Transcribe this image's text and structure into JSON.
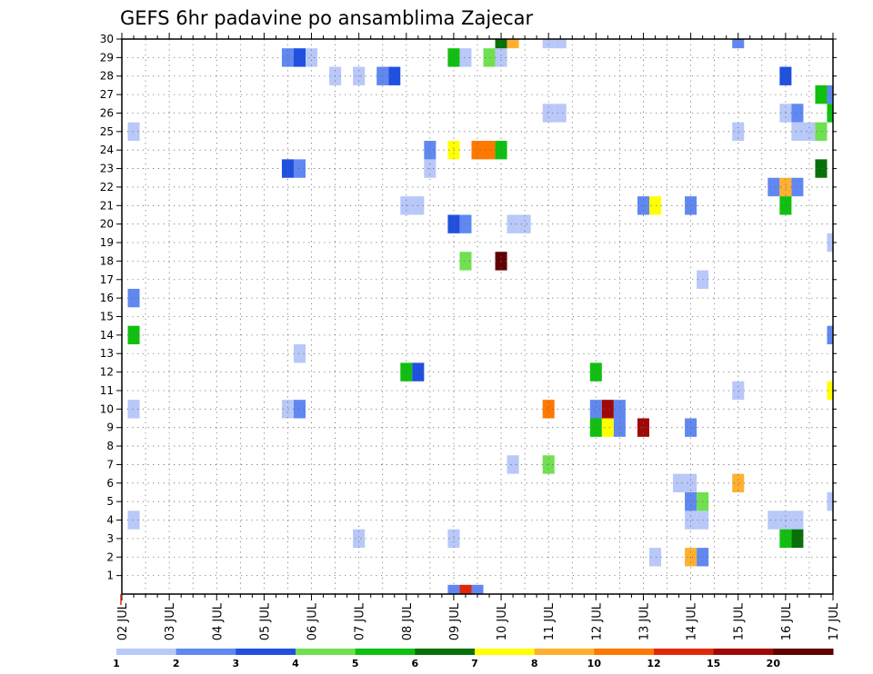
{
  "chart_data": {
    "type": "heatmap",
    "title": "GEFS 6hr padavine po ansamblima Zajecar",
    "xlabel": "",
    "ylabel": "",
    "x_tick_labels": [
      "02 JUL",
      "03 JUL",
      "04 JUL",
      "05 JUL",
      "06 JUL",
      "07 JUL",
      "08 JUL",
      "09 JUL",
      "10 JUL",
      "11 JUL",
      "12 JUL",
      "13 JUL",
      "14 JUL",
      "15 JUL",
      "16 JUL",
      "17 JUL"
    ],
    "xlim_days": [
      2,
      17
    ],
    "y_members": [
      1,
      2,
      3,
      4,
      5,
      6,
      7,
      8,
      9,
      10,
      11,
      12,
      13,
      14,
      15,
      16,
      17,
      18,
      19,
      20,
      21,
      22,
      23,
      24,
      25,
      26,
      27,
      28,
      29,
      30
    ],
    "grid": true,
    "legend": {
      "position": "bottom",
      "levels": [
        1,
        2,
        3,
        4,
        5,
        6,
        7,
        8,
        10,
        12,
        15,
        20
      ],
      "colors": [
        "#b8c8f8",
        "#6088f0",
        "#2050e0",
        "#70e050",
        "#10c010",
        "#087008",
        "#ffff00",
        "#ffb030",
        "#ff7800",
        "#e02808",
        "#a00808",
        "#600000"
      ]
    },
    "cells": [
      {
        "day": 9.0,
        "member": 0,
        "c": "#6088f0"
      },
      {
        "day": 9.25,
        "member": 0,
        "c": "#e02808"
      },
      {
        "day": 9.5,
        "member": 0,
        "c": "#6088f0"
      },
      {
        "day": 2.25,
        "member": 4,
        "c": "#b8c8f8"
      },
      {
        "day": 2.25,
        "member": 10,
        "c": "#b8c8f8"
      },
      {
        "day": 2.25,
        "member": 14,
        "c": "#10c010"
      },
      {
        "day": 2.25,
        "member": 16,
        "c": "#6088f0"
      },
      {
        "day": 2.25,
        "member": 25,
        "c": "#b8c8f8"
      },
      {
        "day": 5.5,
        "member": 10,
        "c": "#b8c8f8"
      },
      {
        "day": 5.75,
        "member": 10,
        "c": "#6088f0"
      },
      {
        "day": 5.75,
        "member": 13,
        "c": "#b8c8f8"
      },
      {
        "day": 5.5,
        "member": 23,
        "c": "#2050e0"
      },
      {
        "day": 5.75,
        "member": 23,
        "c": "#6088f0"
      },
      {
        "day": 5.5,
        "member": 29,
        "c": "#6088f0"
      },
      {
        "day": 5.75,
        "member": 29,
        "c": "#2050e0"
      },
      {
        "day": 6.0,
        "member": 29,
        "c": "#b8c8f8"
      },
      {
        "day": 6.5,
        "member": 28,
        "c": "#b8c8f8"
      },
      {
        "day": 7.0,
        "member": 28,
        "c": "#b8c8f8"
      },
      {
        "day": 7.5,
        "member": 28,
        "c": "#6088f0"
      },
      {
        "day": 7.75,
        "member": 28,
        "c": "#2050e0"
      },
      {
        "day": 7.0,
        "member": 3,
        "c": "#b8c8f8"
      },
      {
        "day": 8.0,
        "member": 12,
        "c": "#10c010"
      },
      {
        "day": 8.25,
        "member": 12,
        "c": "#2050e0"
      },
      {
        "day": 8.0,
        "member": 21,
        "c": "#b8c8f8"
      },
      {
        "day": 8.25,
        "member": 21,
        "c": "#b8c8f8"
      },
      {
        "day": 8.5,
        "member": 23,
        "c": "#b8c8f8"
      },
      {
        "day": 8.5,
        "member": 24,
        "c": "#6088f0"
      },
      {
        "day": 9.0,
        "member": 3,
        "c": "#b8c8f8"
      },
      {
        "day": 9.0,
        "member": 20,
        "c": "#2050e0"
      },
      {
        "day": 9.25,
        "member": 20,
        "c": "#6088f0"
      },
      {
        "day": 9.0,
        "member": 24,
        "c": "#ffff00"
      },
      {
        "day": 9.5,
        "member": 24,
        "c": "#ff7800"
      },
      {
        "day": 9.75,
        "member": 24,
        "c": "#ff7800"
      },
      {
        "day": 10.0,
        "member": 24,
        "c": "#10c010"
      },
      {
        "day": 9.0,
        "member": 29,
        "c": "#10c010"
      },
      {
        "day": 9.25,
        "member": 29,
        "c": "#b8c8f8"
      },
      {
        "day": 9.75,
        "member": 29,
        "c": "#70e050"
      },
      {
        "day": 10.0,
        "member": 29,
        "c": "#b8c8f8"
      },
      {
        "day": 9.25,
        "member": 18,
        "c": "#70e050"
      },
      {
        "day": 10.0,
        "member": 18,
        "c": "#600000"
      },
      {
        "day": 10.0,
        "member": 30,
        "c": "#087008"
      },
      {
        "day": 10.25,
        "member": 30,
        "c": "#ffb030"
      },
      {
        "day": 10.25,
        "member": 7,
        "c": "#b8c8f8"
      },
      {
        "day": 10.25,
        "member": 20,
        "c": "#b8c8f8"
      },
      {
        "day": 10.5,
        "member": 20,
        "c": "#b8c8f8"
      },
      {
        "day": 11.0,
        "member": 7,
        "c": "#70e050"
      },
      {
        "day": 11.0,
        "member": 10,
        "c": "#ff7800"
      },
      {
        "day": 11.0,
        "member": 26,
        "c": "#b8c8f8"
      },
      {
        "day": 11.25,
        "member": 26,
        "c": "#b8c8f8"
      },
      {
        "day": 11.0,
        "member": 30,
        "c": "#b8c8f8"
      },
      {
        "day": 11.25,
        "member": 30,
        "c": "#b8c8f8"
      },
      {
        "day": 12.0,
        "member": 9,
        "c": "#10c010"
      },
      {
        "day": 12.25,
        "member": 9,
        "c": "#ffff00"
      },
      {
        "day": 12.5,
        "member": 9,
        "c": "#6088f0"
      },
      {
        "day": 12.0,
        "member": 10,
        "c": "#6088f0"
      },
      {
        "day": 12.25,
        "member": 10,
        "c": "#a00808"
      },
      {
        "day": 12.5,
        "member": 10,
        "c": "#6088f0"
      },
      {
        "day": 12.0,
        "member": 12,
        "c": "#10c010"
      },
      {
        "day": 13.0,
        "member": 9,
        "c": "#a00808"
      },
      {
        "day": 13.25,
        "member": 2,
        "c": "#b8c8f8"
      },
      {
        "day": 13.0,
        "member": 21,
        "c": "#6088f0"
      },
      {
        "day": 13.25,
        "member": 21,
        "c": "#ffff00"
      },
      {
        "day": 13.75,
        "member": 6,
        "c": "#b8c8f8"
      },
      {
        "day": 14.0,
        "member": 6,
        "c": "#b8c8f8"
      },
      {
        "day": 14.0,
        "member": 2,
        "c": "#ffb030"
      },
      {
        "day": 14.25,
        "member": 2,
        "c": "#6088f0"
      },
      {
        "day": 14.0,
        "member": 4,
        "c": "#b8c8f8"
      },
      {
        "day": 14.25,
        "member": 4,
        "c": "#b8c8f8"
      },
      {
        "day": 14.0,
        "member": 5,
        "c": "#6088f0"
      },
      {
        "day": 14.25,
        "member": 5,
        "c": "#70e050"
      },
      {
        "day": 14.0,
        "member": 9,
        "c": "#6088f0"
      },
      {
        "day": 14.0,
        "member": 21,
        "c": "#6088f0"
      },
      {
        "day": 14.25,
        "member": 17,
        "c": "#b8c8f8"
      },
      {
        "day": 15.0,
        "member": 6,
        "c": "#ffb030"
      },
      {
        "day": 15.0,
        "member": 11,
        "c": "#b8c8f8"
      },
      {
        "day": 15.0,
        "member": 25,
        "c": "#b8c8f8"
      },
      {
        "day": 15.0,
        "member": 30,
        "c": "#6088f0"
      },
      {
        "day": 15.75,
        "member": 4,
        "c": "#b8c8f8"
      },
      {
        "day": 16.0,
        "member": 4,
        "c": "#b8c8f8"
      },
      {
        "day": 16.25,
        "member": 4,
        "c": "#b8c8f8"
      },
      {
        "day": 16.0,
        "member": 3,
        "c": "#10c010"
      },
      {
        "day": 16.25,
        "member": 3,
        "c": "#087008"
      },
      {
        "day": 15.75,
        "member": 22,
        "c": "#6088f0"
      },
      {
        "day": 16.0,
        "member": 22,
        "c": "#ffb030"
      },
      {
        "day": 16.25,
        "member": 22,
        "c": "#6088f0"
      },
      {
        "day": 16.0,
        "member": 21,
        "c": "#10c010"
      },
      {
        "day": 16.0,
        "member": 26,
        "c": "#b8c8f8"
      },
      {
        "day": 16.25,
        "member": 26,
        "c": "#6088f0"
      },
      {
        "day": 16.25,
        "member": 25,
        "c": "#b8c8f8"
      },
      {
        "day": 16.5,
        "member": 25,
        "c": "#b8c8f8"
      },
      {
        "day": 16.75,
        "member": 25,
        "c": "#70e050"
      },
      {
        "day": 16.0,
        "member": 28,
        "c": "#2050e0"
      },
      {
        "day": 16.75,
        "member": 23,
        "c": "#087008"
      },
      {
        "day": 16.75,
        "member": 27,
        "c": "#10c010"
      },
      {
        "day": 17.0,
        "member": 27,
        "c": "#6088f0"
      },
      {
        "day": 17.0,
        "member": 26,
        "c": "#10c010"
      },
      {
        "day": 17.0,
        "member": 19,
        "c": "#b8c8f8"
      },
      {
        "day": 17.0,
        "member": 14,
        "c": "#6088f0"
      },
      {
        "day": 17.0,
        "member": 11,
        "c": "#ffff00"
      },
      {
        "day": 17.0,
        "member": 5,
        "c": "#b8c8f8"
      }
    ]
  }
}
